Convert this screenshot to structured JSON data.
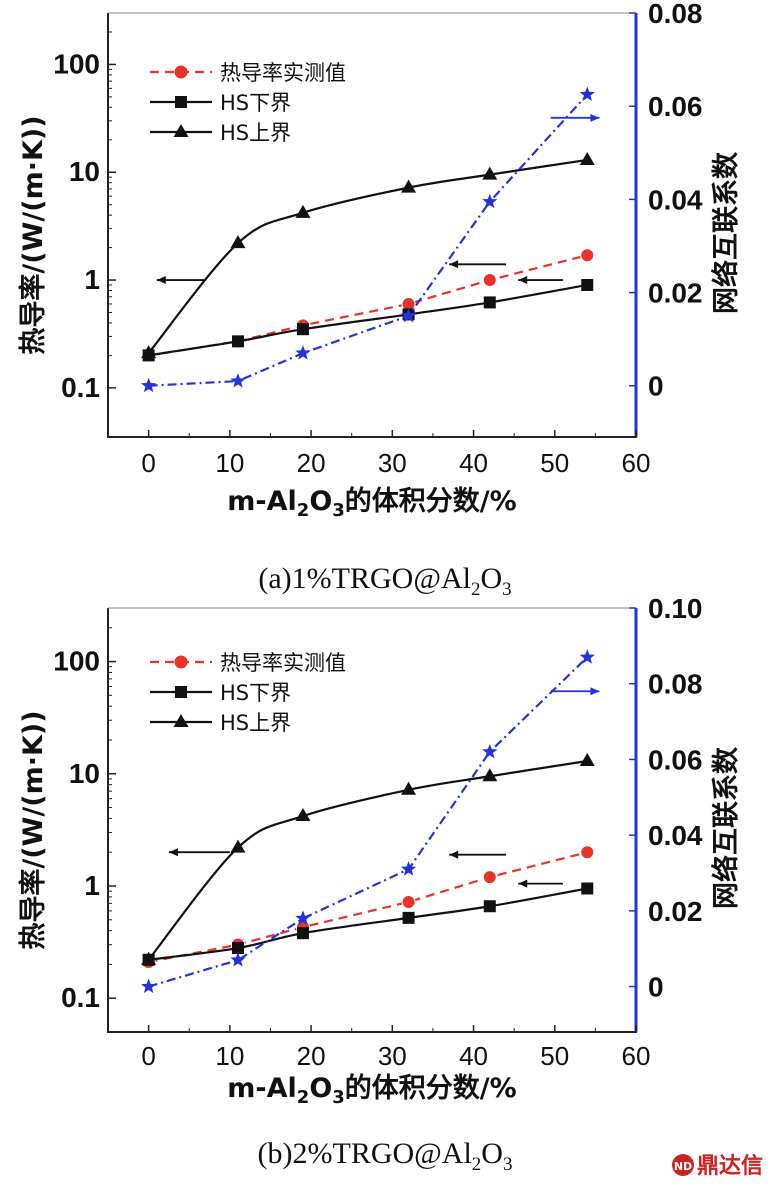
{
  "chart_data": [
    {
      "type": "line",
      "caption_prefix": "(a)1%TRGO@Al",
      "xlabel_prefix": "m-Al",
      "xlabel_suffix": "的体积分数/%",
      "ylabel_left": "热导率/(W/(m·K))",
      "ylabel_right": "网络互联系数",
      "xlim": [
        -5,
        60
      ],
      "x_ticks": [
        "0",
        "10",
        "20",
        "30",
        "40",
        "50",
        "60"
      ],
      "y_left_log_range": [
        0.035,
        300
      ],
      "y_left_ticks": [
        "0.1",
        "1",
        "10",
        "100"
      ],
      "y_right_range": [
        -0.011,
        0.08
      ],
      "y_right_ticks": [
        "0",
        "0.02",
        "0.04",
        "0.06",
        "0.08"
      ],
      "legend": [
        "热导率实测值",
        "HS下界",
        "HS上界"
      ],
      "series": [
        {
          "name": "热导率实测值",
          "axis": "left",
          "color": "#e8322a",
          "marker": "circle",
          "dash": "dashed",
          "x": [
            0,
            11,
            19,
            32,
            42,
            54
          ],
          "y": [
            0.2,
            0.27,
            0.38,
            0.6,
            1.0,
            1.7
          ]
        },
        {
          "name": "HS下界",
          "axis": "left",
          "color": "#111111",
          "marker": "square",
          "dash": "solid",
          "x": [
            0,
            11,
            19,
            32,
            42,
            54
          ],
          "y": [
            0.2,
            0.27,
            0.35,
            0.48,
            0.62,
            0.9
          ]
        },
        {
          "name": "HS上界",
          "axis": "left",
          "color": "#111111",
          "marker": "triangle",
          "dash": "solid",
          "x": [
            0,
            11,
            19,
            32,
            42,
            54
          ],
          "y": [
            0.21,
            2.2,
            4.2,
            7.2,
            9.5,
            13.0
          ]
        },
        {
          "name": "网络互联系数",
          "axis": "right",
          "color": "#2233dd",
          "marker": "star",
          "dash": "dashdot",
          "x": [
            0,
            11,
            19,
            32,
            42,
            54
          ],
          "y": [
            0.0,
            0.001,
            0.007,
            0.015,
            0.0395,
            0.0625
          ]
        }
      ],
      "annotations": [
        {
          "direction": "left",
          "x_from": 7,
          "x_to": 1,
          "y_left": 1.0
        },
        {
          "direction": "left",
          "x_from": 44,
          "x_to": 37,
          "y_left": 1.4
        },
        {
          "direction": "left",
          "x_from": 51,
          "x_to": 45.5,
          "y_left": 1.0
        },
        {
          "direction": "right",
          "x_from": 49.5,
          "x_to": 55.5,
          "y_right": 0.0575
        }
      ]
    },
    {
      "type": "line",
      "caption_prefix": "(b)2%TRGO@Al",
      "xlabel_prefix": "m-Al",
      "xlabel_suffix": "的体积分数/%",
      "ylabel_left": "热导率/(W/(m·K))",
      "ylabel_right": "网络互联系数",
      "xlim": [
        -5,
        60
      ],
      "x_ticks": [
        "0",
        "10",
        "20",
        "30",
        "40",
        "50",
        "60"
      ],
      "y_left_log_range": [
        0.05,
        300
      ],
      "y_left_ticks": [
        "0.1",
        "1",
        "10",
        "100"
      ],
      "y_right_range": [
        -0.012,
        0.1
      ],
      "y_right_ticks": [
        "0",
        "0.02",
        "0.04",
        "0.06",
        "0.08",
        "0.10"
      ],
      "legend": [
        "热导率实测值",
        "HS下界",
        "HS上界"
      ],
      "series": [
        {
          "name": "热导率实测值",
          "axis": "left",
          "color": "#e8322a",
          "marker": "circle",
          "dash": "dashed",
          "x": [
            0,
            11,
            19,
            32,
            42,
            54
          ],
          "y": [
            0.21,
            0.3,
            0.43,
            0.72,
            1.2,
            2.0
          ]
        },
        {
          "name": "HS下界",
          "axis": "left",
          "color": "#111111",
          "marker": "square",
          "dash": "solid",
          "x": [
            0,
            11,
            19,
            32,
            42,
            54
          ],
          "y": [
            0.22,
            0.28,
            0.38,
            0.52,
            0.66,
            0.95
          ]
        },
        {
          "name": "HS上界",
          "axis": "left",
          "color": "#111111",
          "marker": "triangle",
          "dash": "solid",
          "x": [
            0,
            11,
            19,
            32,
            42,
            54
          ],
          "y": [
            0.22,
            2.2,
            4.2,
            7.2,
            9.5,
            13.0
          ]
        },
        {
          "name": "网络互联系数",
          "axis": "right",
          "color": "#2233dd",
          "marker": "star",
          "dash": "dashdot",
          "x": [
            0,
            11,
            19,
            32,
            42,
            54
          ],
          "y": [
            0.0,
            0.007,
            0.018,
            0.031,
            0.062,
            0.087
          ]
        }
      ],
      "annotations": [
        {
          "direction": "left",
          "x_from": 10,
          "x_to": 2.5,
          "y_left": 2.0
        },
        {
          "direction": "left",
          "x_from": 44,
          "x_to": 37,
          "y_left": 1.9
        },
        {
          "direction": "left",
          "x_from": 51,
          "x_to": 45.5,
          "y_left": 1.05
        },
        {
          "direction": "right",
          "x_from": 49.5,
          "x_to": 55.5,
          "y_right": 0.078
        }
      ]
    }
  ],
  "subscripts": {
    "two": "2",
    "three": "3"
  },
  "watermark": {
    "text": "鼎达信",
    "icon_text": "ND"
  }
}
